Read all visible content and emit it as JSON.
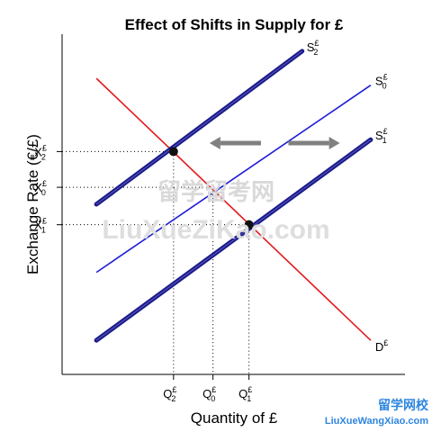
{
  "chart_data": {
    "type": "line",
    "title": "Effect of Shifts in Supply for £",
    "xlabel": "Quantity of £",
    "ylabel": "Exchange Rate (€/£)",
    "xlim": [
      0,
      10
    ],
    "ylim": [
      0,
      10
    ],
    "grid": false,
    "legend": "none",
    "series": [
      {
        "name": "D",
        "superscript": "£",
        "subscript": "",
        "color": "#e31a1c",
        "style": "thin",
        "x": [
          1,
          9
        ],
        "y": [
          8.7,
          1
        ]
      },
      {
        "name": "S",
        "superscript": "£",
        "subscript": "0",
        "color": "#1f1fd6",
        "style": "thin",
        "x": [
          1,
          9
        ],
        "y": [
          3,
          8.5
        ]
      },
      {
        "name": "S",
        "superscript": "£",
        "subscript": "1",
        "color": "#1a1a8c",
        "style": "thick",
        "x": [
          1,
          9
        ],
        "y": [
          1,
          6.9
        ]
      },
      {
        "name": "S",
        "superscript": "£",
        "subscript": "2",
        "color": "#1a1a8c",
        "style": "thick",
        "x": [
          1,
          7
        ],
        "y": [
          5,
          9.5
        ]
      }
    ],
    "equilibria": [
      {
        "x": 3.25,
        "y": 6.55,
        "color": "#111111"
      },
      {
        "x": 5.45,
        "y": 4.4,
        "color": "#111111"
      }
    ],
    "dashed_guides_x": [
      3.25,
      4.4,
      5.45
    ],
    "dashed_guides_y": [
      6.55,
      5.5,
      4.4
    ],
    "x_ticks": [
      {
        "value": 3.25,
        "label": "Q",
        "superscript": "£",
        "subscript": "2"
      },
      {
        "value": 4.4,
        "label": "Q",
        "superscript": "£",
        "subscript": "0"
      },
      {
        "value": 5.45,
        "label": "Q",
        "superscript": "£",
        "subscript": "1"
      }
    ],
    "y_ticks": [
      {
        "value": 6.55,
        "label": "X",
        "superscript": "£",
        "subscript": "2"
      },
      {
        "value": 5.5,
        "label": "X",
        "superscript": "£",
        "subscript": "0"
      },
      {
        "value": 4.4,
        "label": "X",
        "superscript": "£",
        "subscript": "1"
      }
    ],
    "arrows": [
      {
        "from": [
          5.8,
          6.8
        ],
        "to": [
          4.3,
          6.8
        ],
        "color": "#808080"
      },
      {
        "from": [
          6.6,
          6.8
        ],
        "to": [
          8.1,
          6.8
        ],
        "color": "#808080"
      }
    ]
  },
  "watermarks": {
    "center_cn": "留学留考网",
    "center_en": "LiuXueZiKao.com",
    "corner_cn": "留学网校",
    "corner_en": "LiuXueWangXiao.com"
  }
}
